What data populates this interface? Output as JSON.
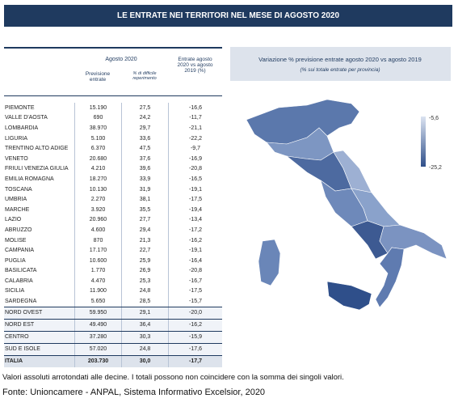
{
  "header": {
    "title": "LE ENTRATE NEI TERRITORI NEL MESE DI AGOSTO 2020"
  },
  "table": {
    "group_header": "Agosto 2020",
    "columns": [
      "Previsione entrate",
      "% di difficile reperimento",
      "Entrate agosto 2020 vs agosto 2019 (%)"
    ],
    "rows": [
      [
        "PIEMONTE",
        "15.190",
        "27,5",
        "-16,6"
      ],
      [
        "VALLE D'AOSTA",
        "690",
        "24,2",
        "-11,7"
      ],
      [
        "LOMBARDIA",
        "38.970",
        "29,7",
        "-21,1"
      ],
      [
        "LIGURIA",
        "5.100",
        "33,6",
        "-22,2"
      ],
      [
        "TRENTINO ALTO ADIGE",
        "6.370",
        "47,5",
        "-9,7"
      ],
      [
        "VENETO",
        "20.680",
        "37,6",
        "-16,9"
      ],
      [
        "FRIULI VENEZIA GIULIA",
        "4.210",
        "39,6",
        "-20,8"
      ],
      [
        "EMILIA ROMAGNA",
        "18.270",
        "33,9",
        "-16,5"
      ],
      [
        "TOSCANA",
        "10.130",
        "31,9",
        "-19,1"
      ],
      [
        "UMBRIA",
        "2.270",
        "38,1",
        "-17,5"
      ],
      [
        "MARCHE",
        "3.920",
        "35,5",
        "-19,4"
      ],
      [
        "LAZIO",
        "20.960",
        "27,7",
        "-13,4"
      ],
      [
        "ABRUZZO",
        "4.600",
        "29,4",
        "-17,2"
      ],
      [
        "MOLISE",
        "870",
        "21,3",
        "-16,2"
      ],
      [
        "CAMPANIA",
        "17.170",
        "22,7",
        "-19,1"
      ],
      [
        "PUGLIA",
        "10.600",
        "25,9",
        "-16,4"
      ],
      [
        "BASILICATA",
        "1.770",
        "26,9",
        "-20,8"
      ],
      [
        "CALABRIA",
        "4.470",
        "25,3",
        "-16,7"
      ],
      [
        "SICILIA",
        "11.900",
        "24,8",
        "-17,5"
      ],
      [
        "SARDEGNA",
        "5.650",
        "28,5",
        "-15,7"
      ]
    ],
    "group_rows": [
      [
        "NORD OVEST",
        "59.950",
        "29,1",
        "-20,0"
      ],
      [
        "NORD EST",
        "49.490",
        "36,4",
        "-16,2"
      ],
      [
        "CENTRO",
        "37.280",
        "30,3",
        "-15,9"
      ],
      [
        "SUD E ISOLE",
        "57.020",
        "24,8",
        "-17,6"
      ]
    ],
    "total_row": [
      "ITALIA",
      "203.730",
      "30,0",
      "-17,7"
    ]
  },
  "map": {
    "title": "Variazione % previsione entrate  agosto 2020 vs agosto 2019",
    "subtitle": "(% sui totale entrate per provincia)",
    "legend_max": "-5,6",
    "legend_min": "-25,2"
  },
  "footer": {
    "note": "Valori assoluti arrotondati alle decine. I totali possono non coincidere con la somma dei singoli valori.",
    "source": "Fonte: Unioncamere - ANPAL, Sistema Informativo Excelsior, 2020"
  }
}
